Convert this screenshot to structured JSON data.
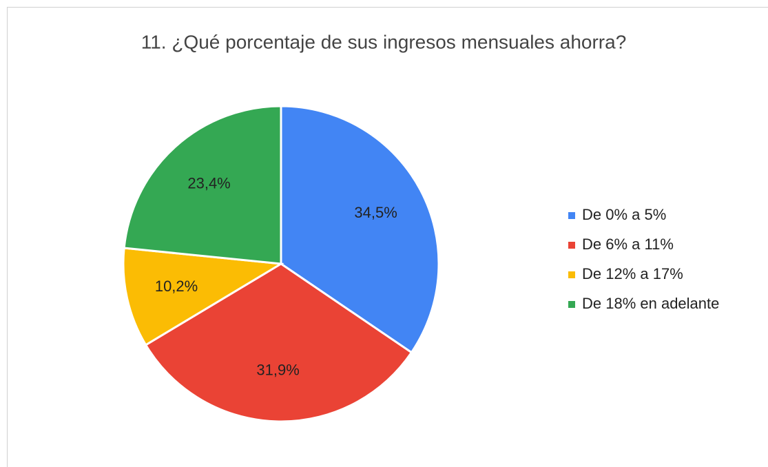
{
  "chart_data": {
    "type": "pie",
    "title": "11. ¿Qué porcentaje de sus ingresos mensuales ahorra?",
    "categories": [
      "De 0% a 5%",
      "De 6% a 11%",
      "De 12% a 17%",
      "De 18% en adelante"
    ],
    "values": [
      34.5,
      31.9,
      10.2,
      23.4
    ],
    "value_labels": [
      "34,5%",
      "31,9%",
      "10,2%",
      "23,4%"
    ],
    "colors": [
      "#4285f4",
      "#ea4335",
      "#fbbc04",
      "#34a853"
    ],
    "legend": "right"
  }
}
